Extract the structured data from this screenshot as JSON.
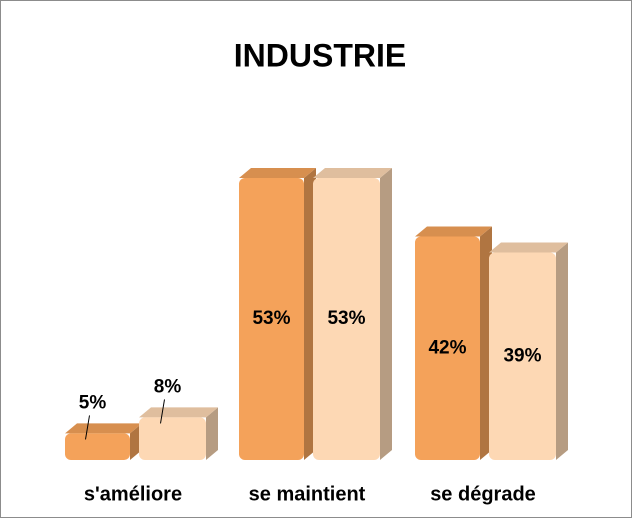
{
  "chart_data": {
    "type": "bar",
    "title": "INDUSTRIE",
    "categories": [
      "s'améliore",
      "se maintient",
      "se dégrade"
    ],
    "series": [
      {
        "color": "#f4a25a",
        "values": [
          5,
          53,
          42
        ],
        "value_labels": [
          "5%",
          "53%",
          "42%"
        ]
      },
      {
        "color": "#fdd8b4",
        "values": [
          8,
          53,
          39
        ],
        "value_labels": [
          "8%",
          "53%",
          "39%"
        ]
      }
    ]
  }
}
